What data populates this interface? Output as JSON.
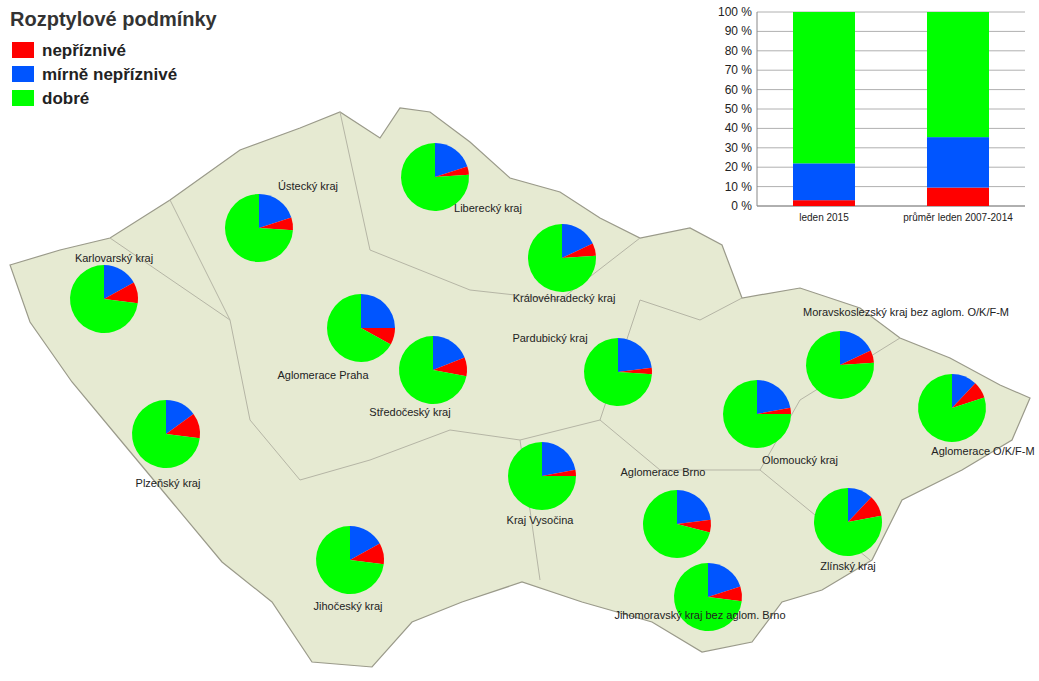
{
  "chart_data": [
    {
      "type": "pie-map",
      "title": "Rozptylové podmínky",
      "regions": [
        {
          "label": "Ústecký kraj",
          "values": [
            6,
            20,
            74
          ]
        },
        {
          "label": "Liberecký kraj",
          "values": [
            4,
            20,
            76
          ]
        },
        {
          "label": "Karlovarský kraj",
          "values": [
            10,
            17,
            73
          ]
        },
        {
          "label": "Královéhradecký kraj",
          "values": [
            6,
            18,
            76
          ]
        },
        {
          "label": "Aglomerace Praha",
          "values": [
            8,
            25,
            67
          ]
        },
        {
          "label": "Středočeský kraj",
          "values": [
            9,
            19,
            72
          ]
        },
        {
          "label": "Pardubický kraj",
          "values": [
            3,
            23,
            74
          ]
        },
        {
          "label": "Plzeňský kraj",
          "values": [
            12,
            15,
            73
          ]
        },
        {
          "label": "Kraj Vysočina",
          "values": [
            3,
            22,
            75
          ]
        },
        {
          "label": "Olomoucký kraj",
          "values": [
            3,
            22,
            75
          ]
        },
        {
          "label": "Moravskoslezský kraj bez aglom. O/K/F-M",
          "values": [
            6,
            18,
            76
          ]
        },
        {
          "label": "Aglomerace O/K/F-M",
          "values": [
            8,
            12,
            80
          ]
        },
        {
          "label": "Aglomerace Brno",
          "values": [
            6,
            23,
            71
          ]
        },
        {
          "label": "Jihomoravský kraj bez aglom. Brno",
          "values": [
            7,
            20,
            73
          ]
        },
        {
          "label": "Zlínský kraj",
          "values": [
            10,
            12,
            78
          ]
        },
        {
          "label": "Jihočeský kraj",
          "values": [
            10,
            17,
            73
          ]
        }
      ]
    },
    {
      "type": "bar",
      "stacked": true,
      "grid": true,
      "categories": [
        "leden 2015",
        "průměr leden 2007-2014"
      ],
      "series": [
        {
          "name": "nepříznivé",
          "color": "#ff0000",
          "values": [
            3,
            9.5
          ]
        },
        {
          "name": "mírně nepříznivé",
          "color": "#0055ff",
          "values": [
            19,
            26
          ]
        },
        {
          "name": "dobré",
          "color": "#00ff00",
          "values": [
            78,
            64.5
          ]
        }
      ],
      "ylim": [
        0,
        100
      ],
      "yticks": [
        {
          "value": 0,
          "label": "0 %"
        },
        {
          "value": 10,
          "label": "10 %"
        },
        {
          "value": 20,
          "label": "20 %"
        },
        {
          "value": 30,
          "label": "30 %"
        },
        {
          "value": 40,
          "label": "40 %"
        },
        {
          "value": 50,
          "label": "50 %"
        },
        {
          "value": 60,
          "label": "60 %"
        },
        {
          "value": 70,
          "label": "70 %"
        },
        {
          "value": 80,
          "label": "80 %"
        },
        {
          "value": 90,
          "label": "90 %"
        },
        {
          "value": 100,
          "label": "100 %"
        }
      ]
    }
  ]
}
